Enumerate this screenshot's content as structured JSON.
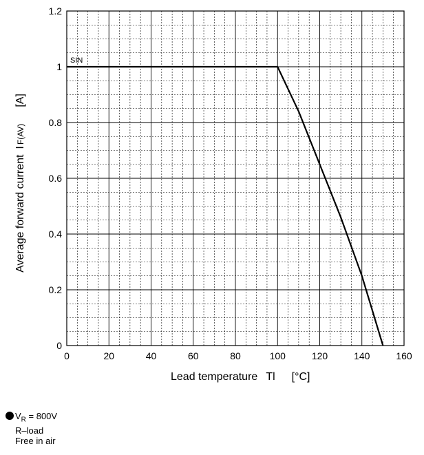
{
  "chart_data": {
    "type": "line",
    "xlabel": "Lead temperature",
    "xlabel_symbol": "Tl",
    "xlabel_unit": "[°C]",
    "ylabel": "Average forward current",
    "ylabel_symbol": "I",
    "ylabel_subscript": "F(AV)",
    "ylabel_unit": "[A]",
    "xlim": [
      0,
      160
    ],
    "ylim": [
      0,
      1.2
    ],
    "x_ticks": [
      0,
      20,
      40,
      60,
      80,
      100,
      120,
      140,
      160
    ],
    "x_tick_labels": [
      "0",
      "20",
      "40",
      "60",
      "80",
      "100",
      "120",
      "140",
      "160"
    ],
    "y_ticks": [
      0,
      0.2,
      0.4,
      0.6,
      0.8,
      1,
      1.2
    ],
    "y_tick_labels": [
      "0",
      "0.2",
      "0.4",
      "0.6",
      "0.8",
      "1",
      "1.2"
    ],
    "x_minor_step": 5,
    "y_minor_step": 0.05,
    "grid": true,
    "series": [
      {
        "name": "SIN",
        "x": [
          0,
          100,
          110,
          120,
          130,
          140,
          150
        ],
        "y": [
          1,
          1,
          0.84,
          0.65,
          0.46,
          0.25,
          0
        ]
      }
    ]
  },
  "notes": {
    "line1_prefix": "V",
    "line1_subscript": "R",
    "line1_suffix": " = 800V",
    "line2": "R–load",
    "line3": "Free in air"
  }
}
